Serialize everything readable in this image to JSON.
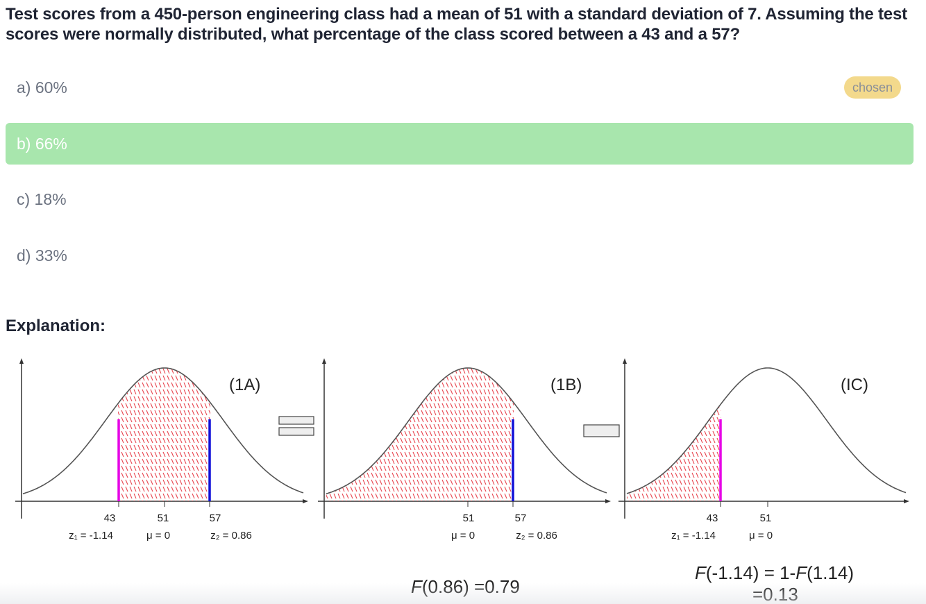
{
  "question": {
    "text": "Test scores from a 450-person engineering class had a mean of 51 with a standard deviation of 7. Assuming the test scores were normally distributed, what percentage of the class scored between a 43 and a 57?"
  },
  "options": [
    {
      "label": "a) 60%",
      "badge": "chosen"
    },
    {
      "label": "b) 66%"
    },
    {
      "label": "c) 18%"
    },
    {
      "label": "d) 33%"
    }
  ],
  "explanation": {
    "heading": "Explanation:",
    "panels": [
      {
        "label": "(1A)",
        "ticks": [
          "43",
          "51",
          "57"
        ],
        "zlabels": {
          "z1": "z₁ = -1.14",
          "mu": "μ = 0",
          "z2": "z₂ = 0.86"
        }
      },
      {
        "label": "(1B)",
        "ticks": [
          "51",
          "57"
        ],
        "zlabels": {
          "mu": "μ = 0",
          "z2": "z₂ = 0.86"
        },
        "formula": {
          "prefix": "F",
          "rest": "(0.86) =0.79"
        }
      },
      {
        "label": "(IC)",
        "ticks": [
          "43",
          "51"
        ],
        "zlabels": {
          "z1": "z₁ = -1.14",
          "mu": "μ = 0"
        },
        "formula": {
          "line1_f1": "F",
          "line1_a": "(-1.14) = 1-",
          "line1_f2": "F",
          "line1_b": "(1.14)",
          "line2": "=0.13"
        }
      }
    ]
  },
  "colors": {
    "correct_bg": "#a8e6ad",
    "badge_bg": "#f3d98c",
    "hatch": "#e8454f",
    "magenta": "#e600e6",
    "blue": "#1010d8",
    "curve": "#555555"
  }
}
